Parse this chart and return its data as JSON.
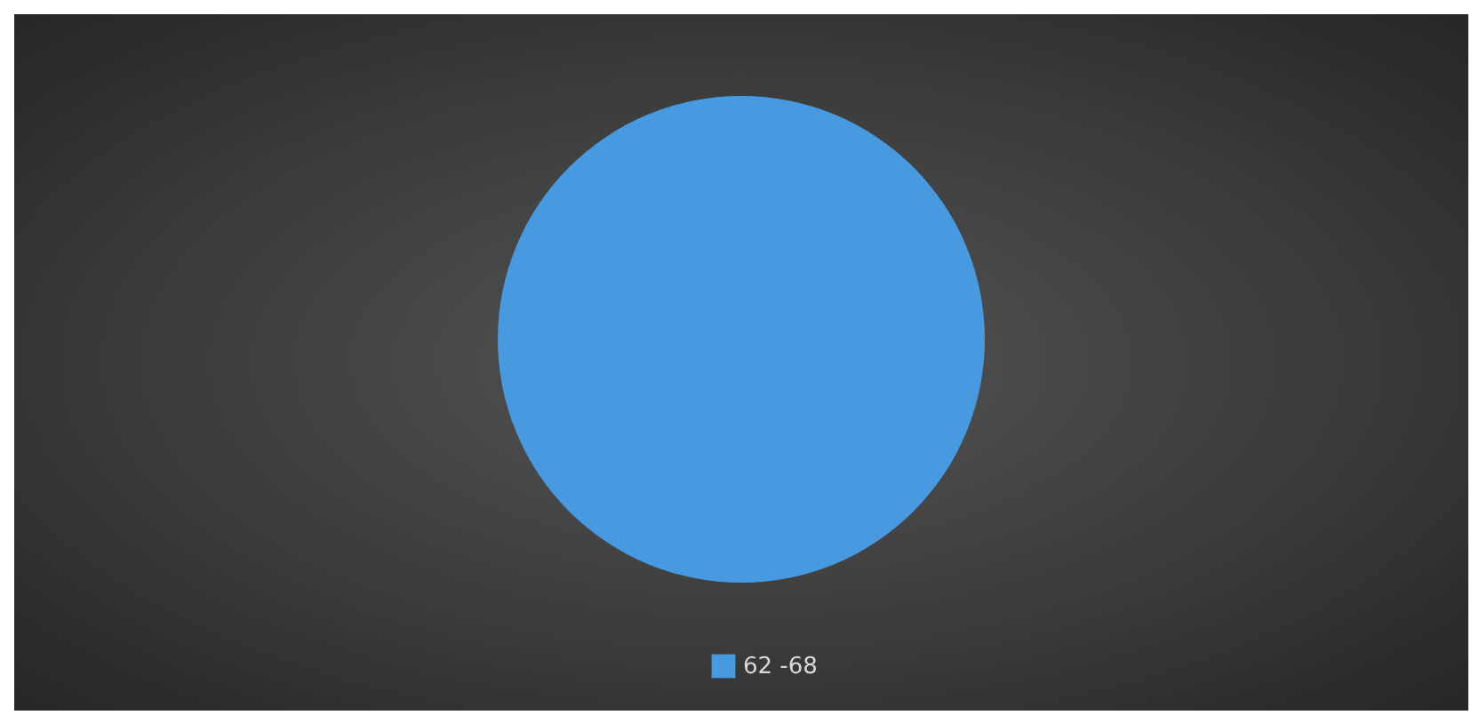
{
  "chart_data": {
    "type": "pie",
    "categories": [
      "62 -68"
    ],
    "values": [
      100
    ],
    "colors": [
      "#4799e0"
    ],
    "legend": "bottom"
  }
}
